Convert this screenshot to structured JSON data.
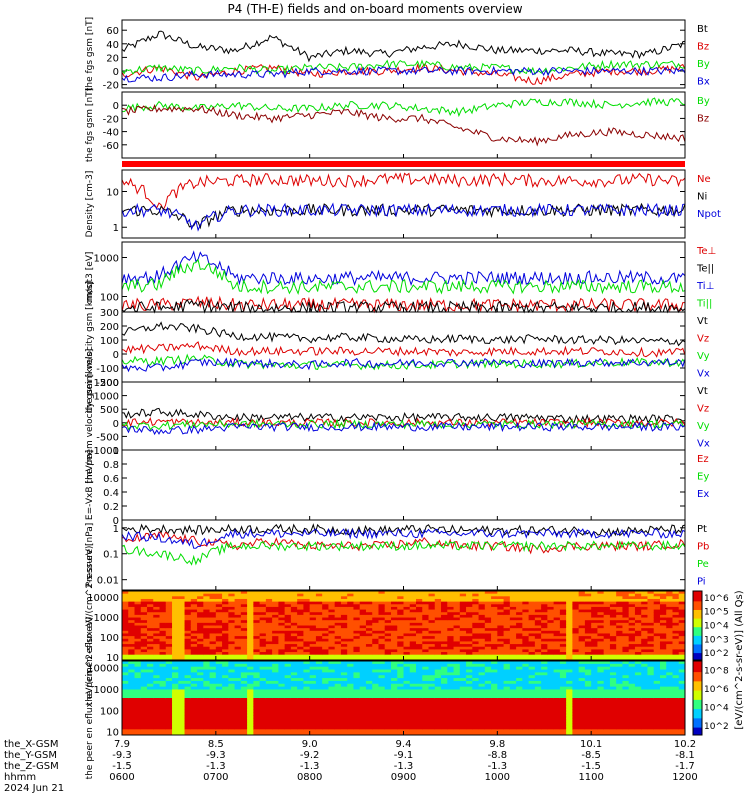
{
  "title": "P4 (TH-E) fields and on-board moments overview",
  "colors": {
    "black": "#000000",
    "red": "#dd0000",
    "green": "#00dd00",
    "blue": "#0000dd",
    "darkred": "#8b0000"
  },
  "status_bar": {
    "color": "#ff0000"
  },
  "chart_data": [
    {
      "type": "line",
      "ylabel": "the fgs gsm [nT]",
      "ylim": [
        -25,
        75
      ],
      "yticks": [
        -20,
        0,
        20,
        40,
        60
      ],
      "series": [
        {
          "name": "Bt",
          "color": "#000000",
          "values": [
            30,
            55,
            35,
            30,
            50,
            20,
            30,
            25,
            35,
            40,
            30,
            30,
            30,
            25,
            25,
            40
          ]
        },
        {
          "name": "Bz",
          "color": "#dd0000",
          "values": [
            -5,
            5,
            -10,
            0,
            5,
            -5,
            0,
            0,
            5,
            0,
            -5,
            -15,
            -5,
            0,
            0,
            5
          ]
        },
        {
          "name": "By",
          "color": "#00dd00",
          "values": [
            0,
            5,
            0,
            5,
            0,
            5,
            5,
            10,
            10,
            5,
            5,
            0,
            5,
            10,
            10,
            10
          ]
        },
        {
          "name": "Bx",
          "color": "#0000dd",
          "values": [
            -10,
            -10,
            -5,
            -5,
            -5,
            0,
            0,
            0,
            0,
            0,
            0,
            0,
            0,
            0,
            0,
            0
          ]
        }
      ]
    },
    {
      "type": "line",
      "ylabel": "the fgs gsm [nT]",
      "ylim": [
        -80,
        20
      ],
      "yticks": [
        -60,
        -40,
        -20,
        0
      ],
      "series": [
        {
          "name": "By",
          "color": "#00dd00",
          "values": [
            -5,
            0,
            -5,
            0,
            -5,
            -5,
            0,
            0,
            -5,
            -10,
            0,
            5,
            5,
            0,
            5,
            5
          ]
        },
        {
          "name": "Bz",
          "color": "#8b0000",
          "values": [
            -10,
            -5,
            -5,
            -15,
            -20,
            -15,
            -10,
            -20,
            -20,
            -35,
            -50,
            -55,
            -45,
            -40,
            -45,
            -50
          ]
        }
      ]
    },
    {
      "type": "line",
      "ylabel": "Density [cm-3]",
      "scale": "log",
      "ylim": [
        0.5,
        40
      ],
      "yticks": [
        1,
        10
      ],
      "series": [
        {
          "name": "Ne",
          "color": "#dd0000",
          "values": [
            20,
            3,
            18,
            20,
            22,
            20,
            20,
            22,
            22,
            20,
            22,
            20,
            20,
            20,
            22,
            18
          ]
        },
        {
          "name": "Ni",
          "color": "#000000",
          "values": [
            3,
            3,
            1,
            3,
            3,
            3,
            3,
            3,
            3,
            3,
            3,
            3,
            3,
            3,
            3,
            3
          ]
        },
        {
          "name": "Npot",
          "color": "#0000dd",
          "values": [
            3,
            3,
            1,
            3,
            3,
            3,
            3,
            3,
            3,
            3,
            3,
            3,
            3,
            3,
            3,
            3
          ]
        }
      ]
    },
    {
      "type": "line",
      "ylabel": "moqt3 [eV]",
      "scale": "log",
      "ylim": [
        40,
        2500
      ],
      "yticks": [
        100,
        1000
      ],
      "series": [
        {
          "name": "Te⊥",
          "color": "#dd0000",
          "values": [
            60,
            60,
            70,
            60,
            60,
            60,
            60,
            60,
            60,
            60,
            60,
            60,
            60,
            60,
            60,
            60
          ]
        },
        {
          "name": "Te||",
          "color": "#000000",
          "values": [
            50,
            50,
            60,
            50,
            50,
            50,
            50,
            50,
            50,
            50,
            50,
            50,
            50,
            50,
            50,
            50
          ]
        },
        {
          "name": "Ti⊥",
          "color": "#0000dd",
          "values": [
            300,
            320,
            1000,
            300,
            300,
            280,
            300,
            300,
            300,
            300,
            300,
            300,
            300,
            300,
            300,
            280
          ]
        },
        {
          "name": "Ti||",
          "color": "#00dd00",
          "values": [
            180,
            200,
            700,
            180,
            180,
            170,
            180,
            180,
            180,
            180,
            180,
            180,
            180,
            180,
            180,
            170
          ]
        }
      ]
    },
    {
      "type": "line",
      "ylabel": "the peim velocity gsm [km/s]",
      "ylim": [
        -200,
        300
      ],
      "yticks": [
        -200,
        -100,
        0,
        100,
        200,
        300
      ],
      "series": [
        {
          "name": "Vt",
          "color": "#000000",
          "values": [
            150,
            200,
            180,
            130,
            120,
            110,
            120,
            110,
            100,
            110,
            100,
            110,
            100,
            100,
            90,
            90
          ]
        },
        {
          "name": "Vz",
          "color": "#dd0000",
          "values": [
            30,
            40,
            60,
            20,
            20,
            20,
            20,
            20,
            20,
            10,
            20,
            20,
            20,
            20,
            10,
            10
          ]
        },
        {
          "name": "Vy",
          "color": "#00dd00",
          "values": [
            -50,
            -50,
            -30,
            -70,
            -80,
            -80,
            -80,
            -80,
            -80,
            -70,
            -70,
            -70,
            -70,
            -60,
            -60,
            -60
          ]
        },
        {
          "name": "Vx",
          "color": "#0000dd",
          "values": [
            -100,
            -100,
            -60,
            -60,
            -70,
            -80,
            -60,
            -70,
            -60,
            -60,
            -60,
            -70,
            -60,
            -60,
            -60,
            -60
          ]
        }
      ]
    },
    {
      "type": "line",
      "ylabel": "the peem velocity gsm [km/s]",
      "ylim": [
        -1000,
        1500
      ],
      "yticks": [
        -1000,
        -500,
        0,
        500,
        1000,
        1500
      ],
      "series": [
        {
          "name": "Vt",
          "color": "#000000",
          "values": [
            300,
            400,
            300,
            200,
            200,
            200,
            200,
            200,
            200,
            200,
            200,
            200,
            150,
            150,
            150,
            150
          ]
        },
        {
          "name": "Vz",
          "color": "#dd0000",
          "values": [
            0,
            50,
            0,
            0,
            0,
            0,
            0,
            0,
            0,
            0,
            0,
            0,
            0,
            0,
            0,
            0
          ]
        },
        {
          "name": "Vy",
          "color": "#00dd00",
          "values": [
            -100,
            -100,
            -50,
            -50,
            -50,
            -50,
            -50,
            -50,
            -50,
            -50,
            -50,
            -50,
            -50,
            -50,
            -50,
            -50
          ]
        },
        {
          "name": "Vx",
          "color": "#0000dd",
          "values": [
            -200,
            -300,
            -250,
            -150,
            -150,
            -150,
            -150,
            -150,
            -150,
            -150,
            -150,
            -150,
            -150,
            -150,
            -150,
            -150
          ]
        }
      ]
    },
    {
      "type": "line",
      "ylabel": "E=-VxB [mV/m]",
      "ylim": [
        0,
        1
      ],
      "yticks": [
        0.0,
        0.2,
        0.4,
        0.6,
        0.8,
        1.0
      ],
      "series": [
        {
          "name": "Ez",
          "color": "#dd0000",
          "values": []
        },
        {
          "name": "Ey",
          "color": "#00dd00",
          "values": []
        },
        {
          "name": "Ex",
          "color": "#0000dd",
          "values": []
        }
      ]
    },
    {
      "type": "line",
      "ylabel": "Pressure [nPa]",
      "scale": "log",
      "ylim": [
        0.004,
        2
      ],
      "yticks": [
        0.01,
        0.1,
        1
      ],
      "series": [
        {
          "name": "Pt",
          "color": "#000000",
          "values": [
            0.9,
            0.9,
            0.8,
            0.9,
            0.9,
            0.9,
            0.8,
            0.8,
            0.9,
            0.8,
            0.8,
            0.8,
            0.8,
            0.7,
            0.8,
            0.9
          ]
        },
        {
          "name": "Pb",
          "color": "#dd0000",
          "values": [
            0.3,
            0.5,
            0.3,
            0.2,
            0.3,
            0.2,
            0.2,
            0.2,
            0.3,
            0.2,
            0.2,
            0.15,
            0.2,
            0.2,
            0.2,
            0.25
          ]
        },
        {
          "name": "Pe",
          "color": "#00dd00",
          "values": [
            0.15,
            0.1,
            0.05,
            0.2,
            0.2,
            0.2,
            0.2,
            0.2,
            0.2,
            0.2,
            0.2,
            0.2,
            0.2,
            0.2,
            0.2,
            0.2
          ]
        },
        {
          "name": "Pi",
          "color": "#0000dd",
          "values": [
            0.5,
            0.4,
            0.2,
            0.6,
            0.6,
            0.6,
            0.6,
            0.6,
            0.6,
            0.6,
            0.6,
            0.6,
            0.6,
            0.6,
            0.6,
            0.6
          ]
        }
      ]
    },
    {
      "type": "heatmap",
      "ylabel": "the peir en eflux eV/(cm^2-s-sr-eV)",
      "scale": "log",
      "ylim": [
        7,
        20000
      ],
      "yticks": [
        10,
        100,
        1000,
        10000
      ],
      "colorbar_ticks": [
        "10^2",
        "10^3",
        "10^4",
        "10^5",
        "10^6"
      ]
    },
    {
      "type": "heatmap",
      "ylabel": "the peer en eflux eV/(cm^2-s-sr-eV)",
      "scale": "log",
      "ylim": [
        7,
        20000
      ],
      "yticks": [
        10,
        100,
        1000,
        10000
      ],
      "colorbar_ticks": [
        "10^2",
        "10^4",
        "10^6",
        "10^8"
      ]
    }
  ],
  "colorbar_label": "[eV/(cm^2-s-sr-eV)] (All Qs)",
  "xaxis": {
    "row_labels": [
      "the_X-GSM",
      "the_Y-GSM",
      "the_Z-GSM",
      "hhmm",
      "2024 Jun 21"
    ],
    "ticks": [
      {
        "x": "7.9",
        "y": "-9.3",
        "z": "-1.5",
        "time": "0600"
      },
      {
        "x": "8.5",
        "y": "-9.3",
        "z": "-1.3",
        "time": "0700"
      },
      {
        "x": "9.0",
        "y": "-9.2",
        "z": "-1.3",
        "time": "0800"
      },
      {
        "x": "9.4",
        "y": "-9.1",
        "z": "-1.3",
        "time": "0900"
      },
      {
        "x": "9.8",
        "y": "-8.8",
        "z": "-1.3",
        "time": "1000"
      },
      {
        "x": "10.1",
        "y": "-8.5",
        "z": "-1.5",
        "time": "1100"
      },
      {
        "x": "10.2",
        "y": "-8.1",
        "z": "-1.7",
        "time": "1200"
      }
    ]
  }
}
